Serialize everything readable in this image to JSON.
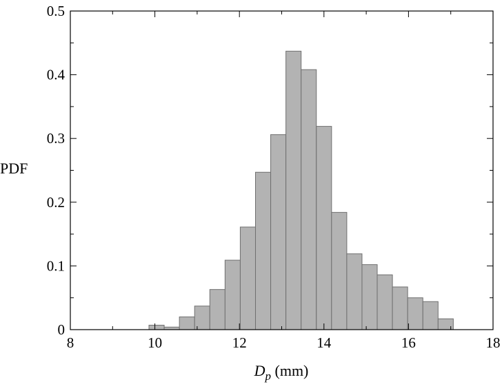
{
  "chart_data": {
    "type": "bar",
    "title": "",
    "ylabel": "PDF",
    "xlabel": {
      "symbol": "D",
      "subscript": "p",
      "unit": " (mm)"
    },
    "xlim": [
      8,
      18
    ],
    "ylim": [
      0,
      0.5
    ],
    "xticks": [
      "8",
      "10",
      "12",
      "14",
      "16",
      "18"
    ],
    "yticks": [
      "0",
      "0.1",
      "0.2",
      "0.3",
      "0.4",
      "0.5"
    ],
    "bin_width": 0.36,
    "bins": [
      {
        "x": 9.86,
        "value": 0.007
      },
      {
        "x": 10.22,
        "value": 0.004
      },
      {
        "x": 10.58,
        "value": 0.02
      },
      {
        "x": 10.94,
        "value": 0.037
      },
      {
        "x": 11.3,
        "value": 0.063
      },
      {
        "x": 11.66,
        "value": 0.109
      },
      {
        "x": 12.02,
        "value": 0.161
      },
      {
        "x": 12.38,
        "value": 0.247
      },
      {
        "x": 12.74,
        "value": 0.306
      },
      {
        "x": 13.1,
        "value": 0.437
      },
      {
        "x": 13.46,
        "value": 0.408
      },
      {
        "x": 13.82,
        "value": 0.319
      },
      {
        "x": 14.18,
        "value": 0.184
      },
      {
        "x": 14.54,
        "value": 0.119
      },
      {
        "x": 14.9,
        "value": 0.102
      },
      {
        "x": 15.26,
        "value": 0.086
      },
      {
        "x": 15.62,
        "value": 0.067
      },
      {
        "x": 15.98,
        "value": 0.05
      },
      {
        "x": 16.34,
        "value": 0.044
      },
      {
        "x": 16.7,
        "value": 0.017
      }
    ],
    "grid": false,
    "legend": "none"
  }
}
